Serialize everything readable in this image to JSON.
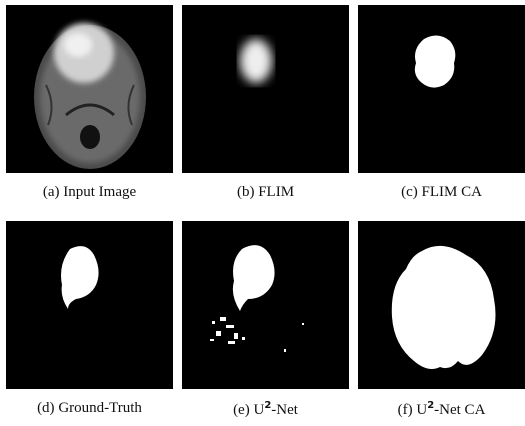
{
  "panels": [
    {
      "tag": "(a)",
      "name": "Input Image"
    },
    {
      "tag": "(b)",
      "name": "FLIM"
    },
    {
      "tag": "(c)",
      "name": "FLIM CA"
    },
    {
      "tag": "(d)",
      "name": "Ground-Truth"
    },
    {
      "tag": "(e)",
      "name": "U",
      "sup": "2",
      "suffix": "-Net"
    },
    {
      "tag": "(f)",
      "name": "U",
      "sup": "2",
      "suffix": "-Net CA"
    }
  ]
}
